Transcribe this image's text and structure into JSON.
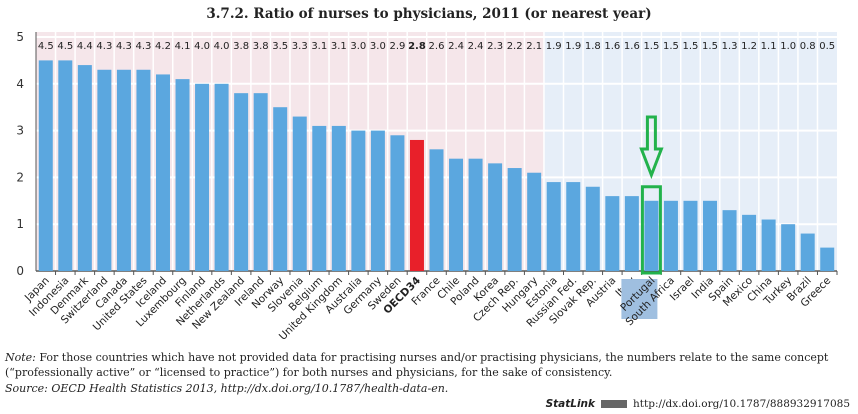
{
  "title": "3.7.2.  Ratio of nurses to physicians, 2011 (or nearest year)",
  "chart_data": {
    "type": "bar",
    "title": "3.7.2.  Ratio of nurses to physicians, 2011 (or nearest year)",
    "xlabel": "",
    "ylabel": "",
    "ylim": [
      0,
      5
    ],
    "yticks": [
      0,
      1,
      2,
      3,
      4,
      5
    ],
    "grid": true,
    "categories": [
      "Japan",
      "Indonesia",
      "Denmark",
      "Switzerland",
      "Canada",
      "United States",
      "Iceland",
      "Luxembourg",
      "Finland",
      "Netherlands",
      "New Zealand",
      "Ireland",
      "Norway",
      "Slovenia",
      "Belgium",
      "United Kingdom",
      "Australia",
      "Germany",
      "Sweden",
      "OECD34",
      "France",
      "Chile",
      "Poland",
      "Korea",
      "Czech Rep.",
      "Hungary",
      "Estonia",
      "Russian Fed.",
      "Slovak Rep.",
      "Austria",
      "Italy",
      "Portugal",
      "South Africa",
      "Israel",
      "India",
      "Spain",
      "Mexico",
      "China",
      "Turkey",
      "Brazil",
      "Greece"
    ],
    "values": [
      4.5,
      4.5,
      4.4,
      4.3,
      4.3,
      4.3,
      4.2,
      4.1,
      4.0,
      4.0,
      3.8,
      3.8,
      3.5,
      3.3,
      3.1,
      3.1,
      3.0,
      3.0,
      2.9,
      2.8,
      2.6,
      2.4,
      2.4,
      2.3,
      2.2,
      2.1,
      1.9,
      1.9,
      1.8,
      1.6,
      1.6,
      1.5,
      1.5,
      1.5,
      1.5,
      1.3,
      1.2,
      1.1,
      1.0,
      0.8,
      0.5
    ],
    "data_labels": [
      "4.5",
      "4.5",
      "4.4",
      "4.3",
      "4.3",
      "4.3",
      "4.2",
      "4.1",
      "4.0",
      "4.0",
      "3.8",
      "3.8",
      "3.5",
      "3.3",
      "3.1",
      "3.1",
      "3.0",
      "3.0",
      "2.9",
      "2.8",
      "2.6",
      "2.4",
      "2.4",
      "2.3",
      "2.2",
      "2.1",
      "1.9",
      "1.9",
      "1.8",
      "1.6",
      "1.6",
      "1.5",
      "1.5",
      "1.5",
      "1.5",
      "1.3",
      "1.2",
      "1.1",
      "1.0",
      "0.8",
      "0.5"
    ],
    "highlight": "OECD34",
    "annotated": "Portugal",
    "colors": {
      "bar": "#5ba7df",
      "highlight": "#e8202a",
      "annotation": "#22b24c",
      "label_highlight": "#9fbfe0",
      "bg_a": "#f5e6ea",
      "bg_b": "#e6eef8"
    }
  },
  "note_label": "Note:",
  "note_text": " For those countries which have not provided data for practising nurses and/or practising physicians, the numbers relate to the same concept (“professionally active” or “licensed to practice”) for both nurses and physicians, for the sake of consistency.",
  "source_label": "Source:",
  "source_text": " OECD Health Statistics 2013, http://dx.doi.org/10.1787/health-data-en.",
  "statlink_label": "StatLink",
  "statlink_url": "http://dx.doi.org/10.1787/888932917085"
}
